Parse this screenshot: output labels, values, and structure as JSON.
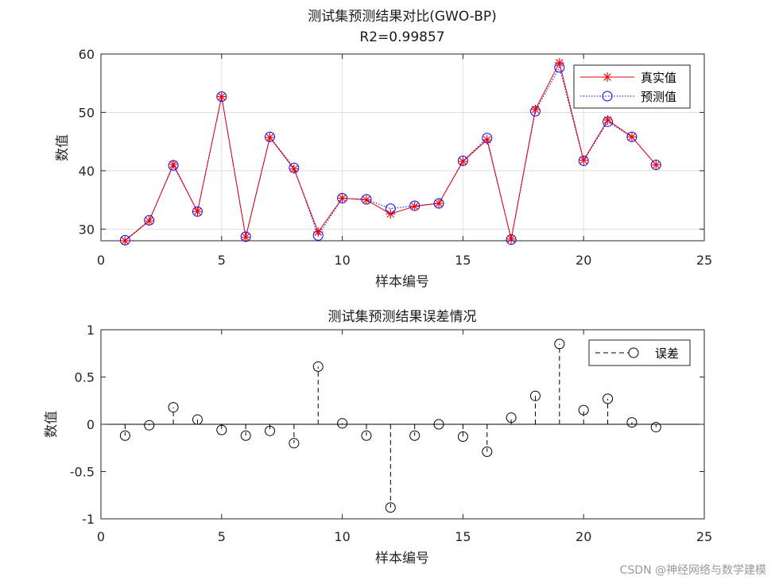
{
  "chart_data": [
    {
      "type": "line",
      "title": "测试集预测结果对比(GWO-BP)",
      "subtitle": "R2=0.99857",
      "xlabel": "样本编号",
      "ylabel": "数值",
      "xlim": [
        0,
        25
      ],
      "ylim": [
        28,
        60
      ],
      "xticks": [
        "0",
        "5",
        "10",
        "15",
        "20",
        "25"
      ],
      "yticks": [
        "30",
        "40",
        "50",
        "60"
      ],
      "grid": true,
      "legend_position": "top-right",
      "x": [
        1,
        2,
        3,
        4,
        5,
        6,
        7,
        8,
        9,
        10,
        11,
        12,
        13,
        14,
        15,
        16,
        17,
        18,
        19,
        20,
        21,
        22,
        23
      ],
      "series": [
        {
          "name": "真实值",
          "color": "#e8000b",
          "marker": "asterisk",
          "line": "solid",
          "values": [
            28.0,
            31.4,
            41.1,
            33.0,
            52.7,
            28.6,
            45.7,
            40.3,
            29.5,
            35.3,
            35.0,
            32.6,
            33.9,
            34.4,
            41.6,
            45.3,
            28.3,
            50.5,
            58.5,
            41.8,
            48.7,
            45.8,
            41.0
          ]
        },
        {
          "name": "预测值",
          "color": "#0000ff",
          "marker": "circle",
          "line": "dotted",
          "values": [
            28.1,
            31.5,
            40.9,
            33.0,
            52.7,
            28.7,
            45.8,
            40.5,
            28.9,
            35.3,
            35.1,
            33.5,
            34.0,
            34.4,
            41.7,
            45.6,
            28.2,
            50.2,
            57.7,
            41.7,
            48.4,
            45.8,
            41.0
          ]
        }
      ]
    },
    {
      "type": "stem",
      "title": "测试集预测结果误差情况",
      "xlabel": "样本编号",
      "ylabel": "数值",
      "xlim": [
        0,
        25
      ],
      "ylim": [
        -1,
        1
      ],
      "xticks": [
        "0",
        "5",
        "10",
        "15",
        "20",
        "25"
      ],
      "yticks": [
        "-1",
        "-0.5",
        "0",
        "0.5",
        "1"
      ],
      "grid": false,
      "legend_position": "top-right",
      "x": [
        1,
        2,
        3,
        4,
        5,
        6,
        7,
        8,
        9,
        10,
        11,
        12,
        13,
        14,
        15,
        16,
        17,
        18,
        19,
        20,
        21,
        22,
        23
      ],
      "series": [
        {
          "name": "误差",
          "color": "#000000",
          "marker": "circle",
          "line": "dashed",
          "values": [
            -0.12,
            -0.01,
            0.18,
            0.05,
            -0.06,
            -0.12,
            -0.07,
            -0.2,
            0.61,
            0.01,
            -0.12,
            -0.88,
            -0.12,
            0.0,
            -0.13,
            -0.29,
            0.07,
            0.3,
            0.85,
            0.15,
            0.27,
            0.02,
            -0.03
          ]
        }
      ]
    }
  ],
  "watermark": "CSDN @神经网络与数学建模"
}
